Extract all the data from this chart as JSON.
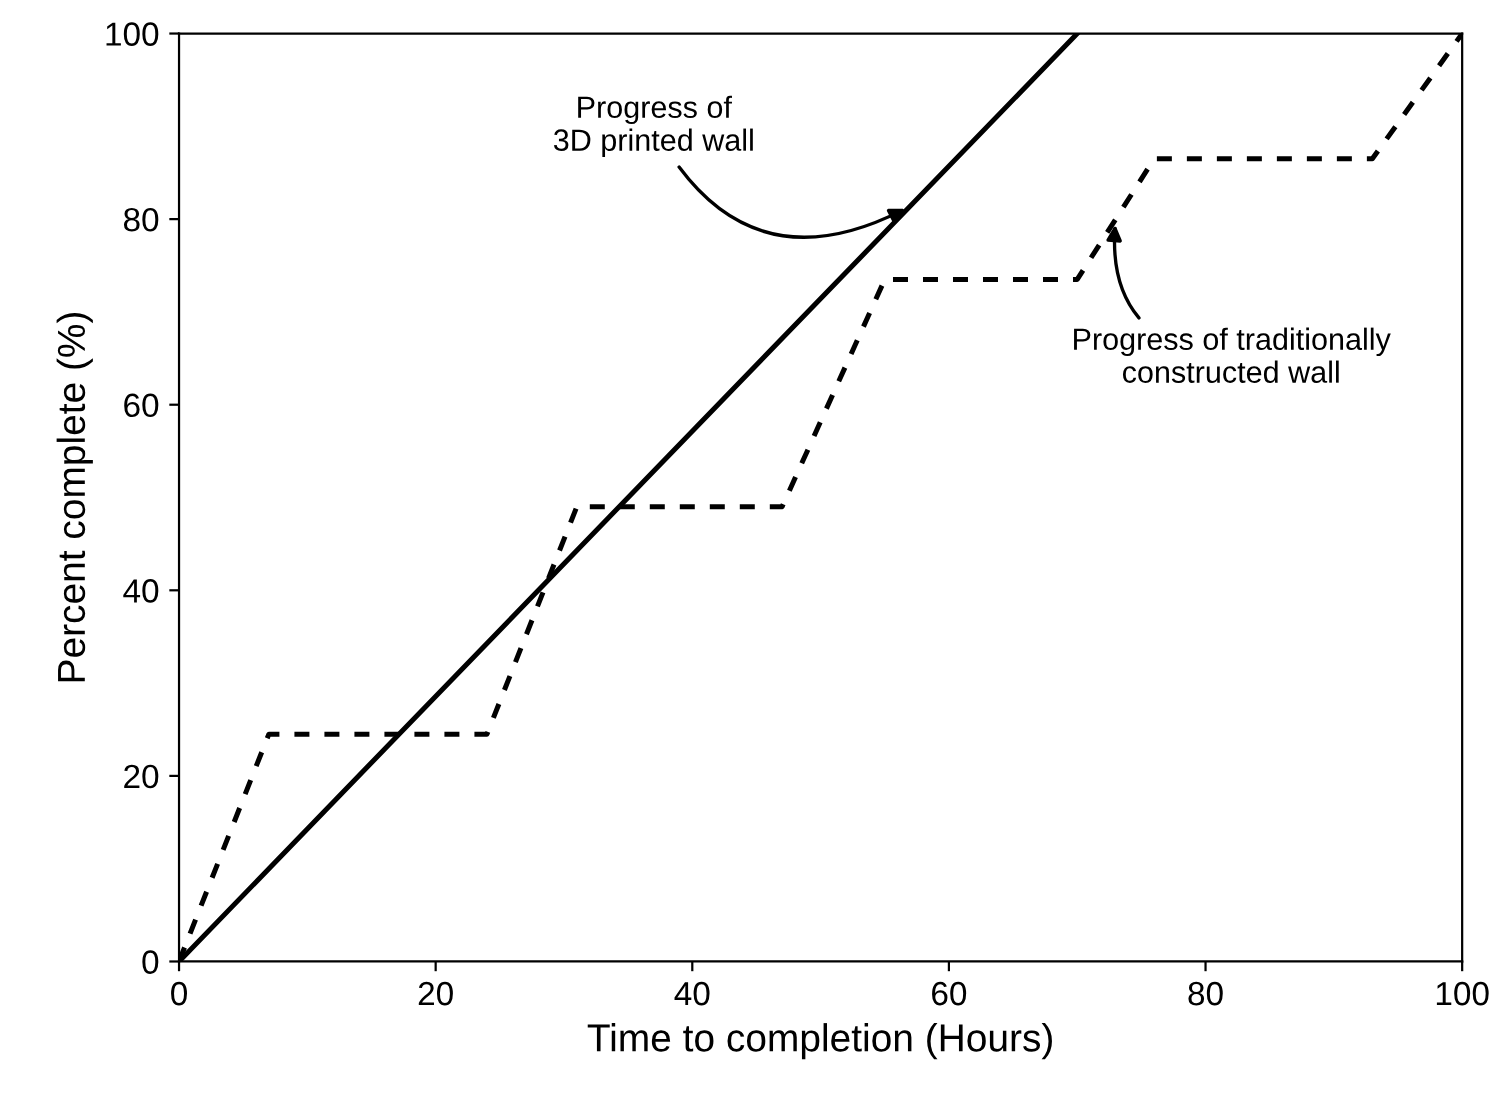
{
  "chart_data": {
    "type": "line",
    "xlabel": "Time to completion (Hours)",
    "ylabel": "Percent complete (%)",
    "xlim": [
      0,
      100
    ],
    "ylim": [
      0,
      100
    ],
    "xticks": [
      0,
      20,
      40,
      60,
      80,
      100
    ],
    "yticks": [
      0,
      20,
      40,
      60,
      80,
      100
    ],
    "grid": false,
    "marker": "none",
    "series": [
      {
        "color": "#000000",
        "line_style": "solid",
        "x": [
          0,
          70
        ],
        "values": [
          0,
          100
        ]
      },
      {
        "color": "#000000",
        "line_style": "dashed",
        "x": [
          0,
          7,
          24,
          31,
          47,
          55,
          70,
          76,
          93,
          100
        ],
        "values": [
          0,
          24.5,
          24.5,
          49,
          49,
          73.5,
          73.5,
          86.5,
          86.5,
          100
        ]
      }
    ],
    "annotations": [
      {
        "text": "Progress of\n3D printed wall",
        "x": 57,
        "y": 81.4
      },
      {
        "text": "Progress of traditionally\nconstructed wall",
        "x": 73,
        "y": 80
      }
    ]
  }
}
